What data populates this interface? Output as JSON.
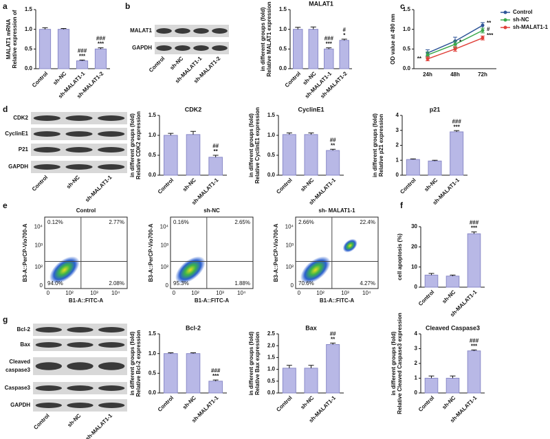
{
  "panel_labels": [
    "a",
    "b",
    "c",
    "d",
    "e",
    "f",
    "g"
  ],
  "blots": [
    {
      "rows": [
        "MALAT1",
        "GAPDH"
      ],
      "columns": [
        "Control",
        "sh-NC",
        "sh-MALAT1-1",
        "sh-MALAT1-2"
      ]
    },
    {
      "rows": [
        "CDK2",
        "CyclinE1",
        "P21",
        "GAPDH"
      ],
      "columns": [
        "Control",
        "sh-NC",
        "sh-MALAT1-1"
      ]
    },
    {
      "rows": [
        "Bcl-2",
        "Bax",
        [
          "Cleaved",
          "caspase3"
        ],
        "Caspase3",
        "GAPDH"
      ],
      "columns": [
        "Control",
        "sh-NC",
        "sh-MALAT1-1"
      ]
    }
  ],
  "flow": {
    "ylabel": "B3-A::PerCP-Vio700-A",
    "xlabel": "B1-A::FITC-A",
    "xticks": [
      "0",
      "10²",
      "10³",
      "10⁴"
    ],
    "yticks": [
      "0",
      "10²",
      "10³",
      "10⁴"
    ],
    "plots": [
      {
        "title": "Control",
        "quadrants": [
          "0.12%",
          "2.77%",
          "94.0%",
          "2.08%"
        ]
      },
      {
        "title": "sh-NC",
        "quadrants": [
          "0.16%",
          "2.65%",
          "95.3%",
          "1.88%"
        ]
      },
      {
        "title": "sh- MALAT1-1",
        "quadrants": [
          "2.66%",
          "22.4%",
          "70.6%",
          "4.27%"
        ]
      }
    ]
  },
  "chart_data": [
    {
      "type": "bar",
      "ylabel": [
        "Relative expression of",
        "MALAT1 mRNA"
      ],
      "categories": [
        "Control",
        "sh-NC",
        "sh-MALAT1-1",
        "sh-MALAT1-2"
      ],
      "values": [
        1.0,
        1.0,
        0.2,
        0.5
      ],
      "errors": [
        0.04,
        0.02,
        0.02,
        0.03
      ],
      "sig_upper": [
        null,
        null,
        "###",
        "###"
      ],
      "sig_lower": [
        null,
        null,
        "***",
        "***"
      ],
      "ylim": [
        0,
        1.5
      ],
      "yticks": [
        {
          "value": 0,
          "label": "0.0"
        },
        {
          "value": 0.5,
          "label": "0.5"
        },
        {
          "value": 1,
          "label": "1.0"
        },
        {
          "value": 1.5,
          "label": "1.5"
        }
      ],
      "color": "#b8b8e6"
    },
    {
      "type": "bar",
      "title": "MALAT1",
      "ylabel": [
        "Relative MALAT1 expression",
        "in different groups (fold)"
      ],
      "categories": [
        "Control",
        "sh-NC",
        "sh-MALAT1-1",
        "sh-MALAT1-2"
      ],
      "values": [
        1.0,
        1.0,
        0.5,
        0.72
      ],
      "errors": [
        0.05,
        0.06,
        0.03,
        0.03
      ],
      "sig_upper": [
        null,
        null,
        "###",
        "#"
      ],
      "sig_lower": [
        null,
        null,
        "***",
        "*"
      ],
      "ylim": [
        0,
        1.5
      ],
      "yticks": [
        {
          "value": 0,
          "label": "0.0"
        },
        {
          "value": 0.5,
          "label": "0.5"
        },
        {
          "value": 1,
          "label": "1.0"
        },
        {
          "value": 1.5,
          "label": "1.5"
        }
      ],
      "color": "#b8b8e6"
    },
    {
      "type": "line",
      "ylabel": [
        "OD value at 490 nm"
      ],
      "categories": [
        "24h",
        "48h",
        "72h"
      ],
      "series": [
        {
          "name": "Control",
          "color": "#2e5597",
          "values": [
            0.4,
            0.7,
            1.1
          ],
          "errors": [
            0.08,
            0.1,
            0.07
          ]
        },
        {
          "name": "sh-NC",
          "color": "#3aa84a",
          "values": [
            0.35,
            0.62,
            0.97
          ],
          "errors": [
            0.07,
            0.08,
            0.06
          ]
        },
        {
          "name": "sh-MALAT1-1",
          "color": "#e0413a",
          "values": [
            0.25,
            0.5,
            0.78
          ],
          "errors": [
            0.05,
            0.06,
            0.05
          ]
        }
      ],
      "annotations": [
        [
          "**"
        ],
        [
          "*"
        ],
        [
          "**",
          "#",
          "***"
        ]
      ],
      "ylim": [
        0,
        1.5
      ],
      "yticks": [
        {
          "value": 0,
          "label": "0.0"
        },
        {
          "value": 0.5,
          "label": "0.5"
        },
        {
          "value": 1,
          "label": "1.0"
        },
        {
          "value": 1.5,
          "label": "1.5"
        }
      ]
    },
    {
      "type": "bar",
      "title": "CDK2",
      "ylabel": [
        "Relative CDK2 expression",
        "in different groups (fold)"
      ],
      "categories": [
        "Control",
        "sh-NC",
        "sh-MALAT1-1"
      ],
      "values": [
        1.0,
        1.02,
        0.45
      ],
      "errors": [
        0.05,
        0.08,
        0.05
      ],
      "sig_upper": [
        null,
        null,
        "##"
      ],
      "sig_lower": [
        null,
        null,
        "**"
      ],
      "ylim": [
        0,
        1.5
      ],
      "yticks": [
        {
          "value": 0,
          "label": "0.0"
        },
        {
          "value": 0.5,
          "label": "0.5"
        },
        {
          "value": 1,
          "label": "1.0"
        },
        {
          "value": 1.5,
          "label": "1.5"
        }
      ],
      "color": "#b8b8e6"
    },
    {
      "type": "bar",
      "title": "CyclinE1",
      "ylabel": [
        "Relative CyclinE1 expression",
        "in different groups (fold)"
      ],
      "categories": [
        "Control",
        "sh-NC",
        "sh-MALAT1-1"
      ],
      "values": [
        1.02,
        1.02,
        0.62
      ],
      "errors": [
        0.04,
        0.04,
        0.03
      ],
      "sig_upper": [
        null,
        null,
        "##"
      ],
      "sig_lower": [
        null,
        null,
        "**"
      ],
      "ylim": [
        0,
        1.5
      ],
      "yticks": [
        {
          "value": 0,
          "label": "0.0"
        },
        {
          "value": 0.5,
          "label": "0.5"
        },
        {
          "value": 1,
          "label": "1.0"
        },
        {
          "value": 1.5,
          "label": "1.5"
        }
      ],
      "color": "#b8b8e6"
    },
    {
      "type": "bar",
      "title": "p21",
      "ylabel": [
        "Relative p21 expression",
        "in different groups (fold)"
      ],
      "categories": [
        "Control",
        "sh-NC",
        "sh-MALAT1-1"
      ],
      "values": [
        1.05,
        0.95,
        2.9
      ],
      "errors": [
        0.04,
        0.05,
        0.08
      ],
      "sig_upper": [
        null,
        null,
        "###"
      ],
      "sig_lower": [
        null,
        null,
        "***"
      ],
      "ylim": [
        0,
        4
      ],
      "yticks": [
        0,
        1,
        2,
        3,
        4
      ],
      "color": "#b8b8e6"
    },
    {
      "type": "bar",
      "ylabel": [
        "cell apoptosis (%)"
      ],
      "categories": [
        "Control",
        "sh-NC",
        "sh-MALAT1-1"
      ],
      "values": [
        6,
        5.5,
        26.5
      ],
      "errors": [
        0.8,
        0.5,
        0.9
      ],
      "sig_upper": [
        null,
        null,
        "###"
      ],
      "sig_lower": [
        null,
        null,
        "***"
      ],
      "ylim": [
        0,
        30
      ],
      "yticks": [
        0,
        10,
        20,
        30
      ],
      "color": "#b8b8e6"
    },
    {
      "type": "bar",
      "title": "Bcl-2",
      "ylabel": [
        "Relative Bcl-2 expression",
        "in different groups (fold)"
      ],
      "categories": [
        "Control",
        "sh-NC",
        "sh-MALAT1-1"
      ],
      "values": [
        1.0,
        1.0,
        0.3
      ],
      "errors": [
        0.02,
        0.02,
        0.03
      ],
      "sig_upper": [
        null,
        null,
        "###"
      ],
      "sig_lower": [
        null,
        null,
        "***"
      ],
      "ylim": [
        0,
        1.5
      ],
      "yticks": [
        {
          "value": 0,
          "label": "0.0"
        },
        {
          "value": 0.5,
          "label": "0.5"
        },
        {
          "value": 1,
          "label": "1.0"
        },
        {
          "value": 1.5,
          "label": "1.5"
        }
      ],
      "color": "#b8b8e6"
    },
    {
      "type": "bar",
      "title": "Bax",
      "ylabel": [
        "Relative Bax expression",
        "in different groups (fold)"
      ],
      "categories": [
        "Control",
        "sh-NC",
        "sh-MALAT1-1"
      ],
      "values": [
        1.05,
        1.05,
        2.05
      ],
      "errors": [
        0.12,
        0.12,
        0.06
      ],
      "sig_upper": [
        null,
        null,
        "##"
      ],
      "sig_lower": [
        null,
        null,
        "**"
      ],
      "ylim": [
        0,
        2.5
      ],
      "yticks": [
        {
          "value": 0,
          "label": "0.0"
        },
        {
          "value": 0.5,
          "label": "0.5"
        },
        {
          "value": 1,
          "label": "1.0"
        },
        {
          "value": 1.5,
          "label": "1.5"
        },
        {
          "value": 2,
          "label": "2.0"
        },
        {
          "value": 2.5,
          "label": "2.5"
        }
      ],
      "color": "#b8b8e6"
    },
    {
      "type": "bar",
      "title": "Cleaved Caspase3",
      "ylabel": [
        "Relative Cleaved Caspase3 expression",
        "in different groups (fold)"
      ],
      "categories": [
        "Control",
        "sh-NC",
        "sh-MALAT1-1"
      ],
      "values": [
        1.0,
        1.0,
        2.85
      ],
      "errors": [
        0.15,
        0.15,
        0.06
      ],
      "sig_upper": [
        null,
        null,
        "###"
      ],
      "sig_lower": [
        null,
        null,
        "***"
      ],
      "ylim": [
        0,
        4
      ],
      "yticks": [
        0,
        1,
        2,
        3,
        4
      ],
      "color": "#b8b8e6"
    }
  ]
}
